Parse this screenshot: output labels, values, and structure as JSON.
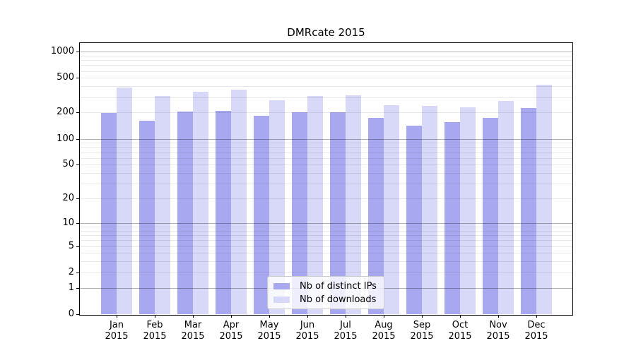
{
  "title": "DMRcate 2015",
  "chart_data": {
    "type": "bar",
    "title": "DMRcate 2015",
    "scale": "log10(1+v)",
    "grid": true,
    "legend_position": "lower center",
    "categories": [
      "Jan",
      "Feb",
      "Mar",
      "Apr",
      "May",
      "Jun",
      "Jul",
      "Aug",
      "Sep",
      "Oct",
      "Nov",
      "Dec"
    ],
    "year_label": "2015",
    "y_ticks": [
      0,
      1,
      2,
      5,
      10,
      20,
      50,
      100,
      200,
      500,
      1000
    ],
    "ylim": [
      0,
      1250
    ],
    "series": [
      {
        "name": "Nb of distinct IPs",
        "color": "#a8a8f0",
        "values": [
          197,
          160,
          205,
          208,
          183,
          201,
          200,
          175,
          142,
          155,
          175,
          227
        ]
      },
      {
        "name": "Nb of downloads",
        "color": "#d8d8f8",
        "values": [
          390,
          310,
          345,
          367,
          278,
          310,
          315,
          243,
          241,
          228,
          274,
          418
        ]
      }
    ]
  }
}
